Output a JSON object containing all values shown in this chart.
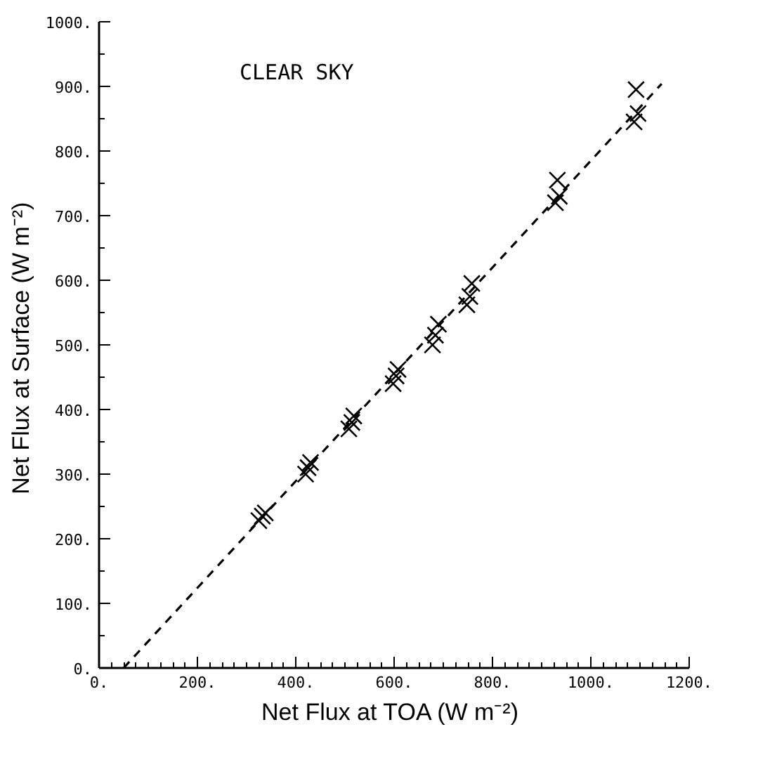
{
  "chart_data": {
    "type": "scatter",
    "xlabel": "Net Flux at TOA  (W m⁻²)",
    "ylabel": "Net Flux at Surface  (W m⁻²)",
    "annotations": [
      "CLEAR SKY"
    ],
    "xlim": [
      0,
      1200
    ],
    "ylim": [
      0,
      1000
    ],
    "xticks": [
      {
        "value": 0,
        "label": "0."
      },
      {
        "value": 200,
        "label": "200."
      },
      {
        "value": 400,
        "label": "400."
      },
      {
        "value": 600,
        "label": "600."
      },
      {
        "value": 800,
        "label": "800."
      },
      {
        "value": 1000,
        "label": "1000."
      },
      {
        "value": 1200,
        "label": "1200."
      }
    ],
    "yticks": [
      {
        "value": 0,
        "label": "0."
      },
      {
        "value": 100,
        "label": "100."
      },
      {
        "value": 200,
        "label": "200."
      },
      {
        "value": 300,
        "label": "300."
      },
      {
        "value": 400,
        "label": "400."
      },
      {
        "value": 500,
        "label": "500."
      },
      {
        "value": 600,
        "label": "600."
      },
      {
        "value": 700,
        "label": "700."
      },
      {
        "value": 800,
        "label": "800."
      },
      {
        "value": 900,
        "label": "900."
      },
      {
        "value": 1000,
        "label": "1000."
      }
    ],
    "grid": false,
    "series": [
      {
        "marker": "cross",
        "color": "#000000",
        "x": [
          325,
          332,
          338,
          420,
          425,
          430,
          508,
          514,
          518,
          598,
          604,
          608,
          678,
          684,
          690,
          748,
          754,
          758,
          928,
          936,
          932,
          1088,
          1096,
          1092
        ],
        "values": [
          228,
          235,
          240,
          300,
          310,
          318,
          370,
          380,
          390,
          440,
          452,
          462,
          500,
          515,
          532,
          562,
          575,
          595,
          720,
          730,
          755,
          845,
          858,
          895
        ]
      },
      {
        "type": "line",
        "line_style": "dashed",
        "marker": "none",
        "color": "#000000",
        "x": [
          50,
          1144
        ],
        "values": [
          0,
          904
        ]
      }
    ]
  }
}
